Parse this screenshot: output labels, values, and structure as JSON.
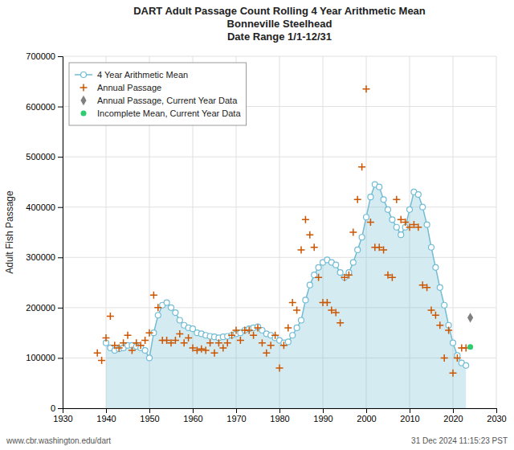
{
  "chart_data": {
    "type": "line",
    "title": [
      "DART Adult Passage Count Rolling 4 Year Arithmetic Mean",
      "Bonneville Steelhead",
      "Date Range 1/1-12/31"
    ],
    "ylabel": "Adult Fish Passage",
    "annotations": [
      "www.cbr.washington.edu/dart",
      "31 Dec 2024 11:15:23 PST"
    ],
    "xlim": [
      1930,
      2030
    ],
    "ylim": [
      0,
      700000
    ],
    "xticks": [
      1930,
      1940,
      1950,
      1960,
      1970,
      1980,
      1990,
      2000,
      2010,
      2020,
      2030
    ],
    "yticks": [
      0,
      100000,
      200000,
      300000,
      400000,
      500000,
      600000,
      700000
    ],
    "grid": true,
    "legend": "upper-left",
    "series": [
      {
        "name": "4 Year Arithmetic Mean",
        "type": "area",
        "marker": "circle",
        "color": "#72BCD4",
        "x": [
          1940,
          1941,
          1942,
          1943,
          1944,
          1945,
          1946,
          1947,
          1948,
          1949,
          1950,
          1951,
          1952,
          1953,
          1954,
          1955,
          1956,
          1957,
          1958,
          1959,
          1960,
          1961,
          1962,
          1963,
          1964,
          1965,
          1966,
          1967,
          1968,
          1969,
          1970,
          1971,
          1972,
          1973,
          1974,
          1975,
          1976,
          1977,
          1978,
          1979,
          1980,
          1981,
          1982,
          1983,
          1984,
          1985,
          1986,
          1987,
          1988,
          1989,
          1990,
          1991,
          1992,
          1993,
          1994,
          1995,
          1996,
          1997,
          1998,
          1999,
          2000,
          2001,
          2002,
          2003,
          2004,
          2005,
          2006,
          2007,
          2008,
          2009,
          2010,
          2011,
          2012,
          2013,
          2014,
          2015,
          2016,
          2017,
          2018,
          2019,
          2020,
          2021,
          2022,
          2023
        ],
        "values": [
          130000,
          120000,
          115000,
          118000,
          120000,
          125000,
          125000,
          123000,
          120000,
          115000,
          100000,
          150000,
          185000,
          205000,
          210000,
          200000,
          190000,
          175000,
          165000,
          160000,
          158000,
          150000,
          148000,
          145000,
          143000,
          142000,
          140000,
          142000,
          143000,
          145000,
          148000,
          150000,
          155000,
          158000,
          160000,
          162000,
          155000,
          148000,
          145000,
          140000,
          135000,
          130000,
          132000,
          145000,
          160000,
          175000,
          215000,
          245000,
          265000,
          280000,
          290000,
          295000,
          290000,
          285000,
          270000,
          260000,
          270000,
          290000,
          315000,
          340000,
          380000,
          420000,
          445000,
          440000,
          415000,
          395000,
          375000,
          360000,
          345000,
          360000,
          395000,
          430000,
          425000,
          400000,
          365000,
          320000,
          280000,
          240000,
          205000,
          165000,
          130000,
          105000,
          90000,
          85000
        ]
      },
      {
        "name": "Annual Passage",
        "type": "scatter",
        "marker": "plus",
        "color": "#CC5500",
        "x": [
          1938,
          1939,
          1940,
          1941,
          1942,
          1943,
          1944,
          1945,
          1946,
          1947,
          1948,
          1949,
          1950,
          1951,
          1952,
          1953,
          1954,
          1955,
          1956,
          1957,
          1958,
          1959,
          1960,
          1961,
          1962,
          1963,
          1964,
          1965,
          1966,
          1967,
          1968,
          1969,
          1970,
          1971,
          1972,
          1973,
          1974,
          1975,
          1976,
          1977,
          1978,
          1979,
          1980,
          1981,
          1982,
          1983,
          1984,
          1985,
          1986,
          1987,
          1988,
          1989,
          1990,
          1991,
          1992,
          1993,
          1994,
          1995,
          1996,
          1997,
          1998,
          1999,
          2000,
          2001,
          2002,
          2003,
          2004,
          2005,
          2006,
          2007,
          2008,
          2009,
          2010,
          2011,
          2012,
          2013,
          2014,
          2015,
          2016,
          2017,
          2018,
          2019,
          2020,
          2021,
          2022,
          2023
        ],
        "values": [
          110000,
          95000,
          140000,
          183000,
          125000,
          120000,
          130000,
          145000,
          115000,
          130000,
          125000,
          135000,
          150000,
          225000,
          200000,
          135000,
          135000,
          130000,
          135000,
          148000,
          130000,
          140000,
          120000,
          115000,
          118000,
          115000,
          130000,
          110000,
          130000,
          120000,
          130000,
          145000,
          155000,
          135000,
          155000,
          155000,
          145000,
          160000,
          130000,
          110000,
          125000,
          145000,
          80000,
          125000,
          160000,
          210000,
          195000,
          315000,
          375000,
          345000,
          320000,
          260000,
          210000,
          210000,
          195000,
          190000,
          170000,
          260000,
          265000,
          350000,
          415000,
          480000,
          635000,
          370000,
          320000,
          320000,
          315000,
          265000,
          260000,
          415000,
          375000,
          370000,
          360000,
          365000,
          360000,
          245000,
          240000,
          195000,
          185000,
          165000,
          100000,
          155000,
          70000,
          100000,
          120000,
          120000
        ]
      },
      {
        "name": "Annual Passage, Current Year Data",
        "type": "scatter",
        "marker": "diamond",
        "color": "#808080",
        "x": [
          2024
        ],
        "values": [
          180000
        ]
      },
      {
        "name": "Incomplete Mean, Current Year Data",
        "type": "scatter",
        "marker": "circle",
        "color": "#2ECC71",
        "x": [
          2024
        ],
        "values": [
          122000
        ]
      }
    ]
  }
}
